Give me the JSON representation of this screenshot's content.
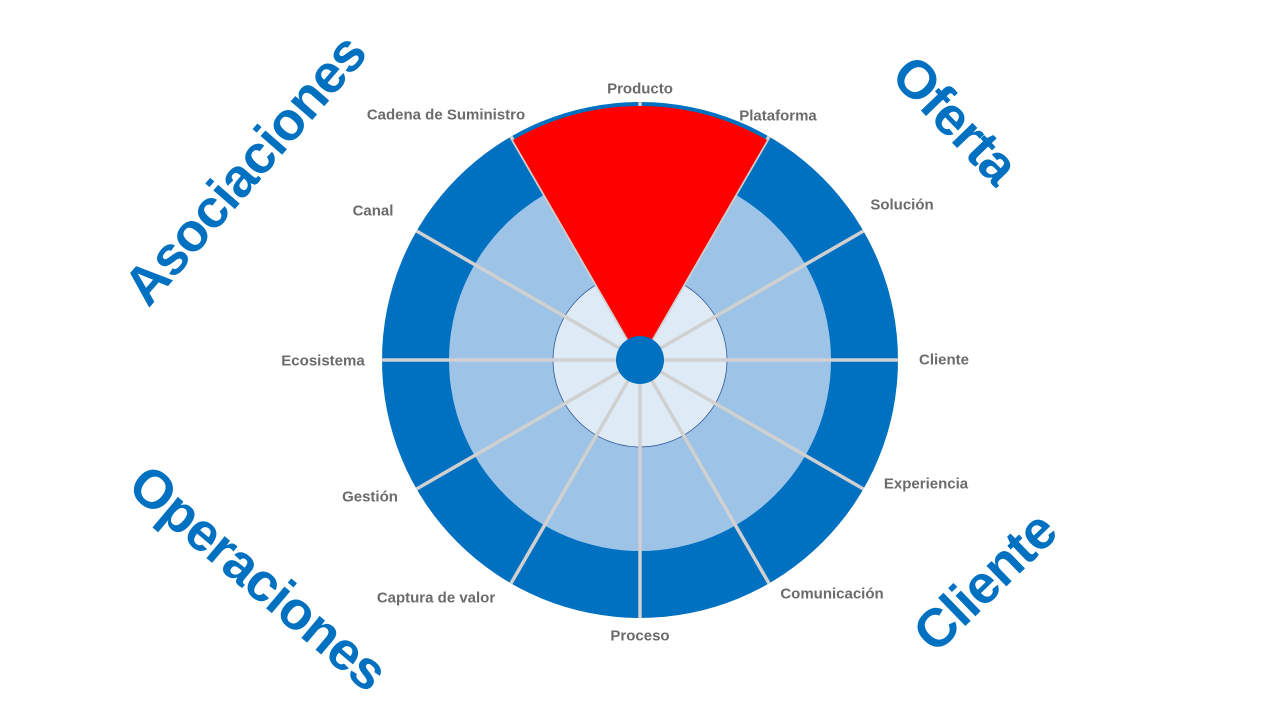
{
  "colors": {
    "outer_ring": "#0070C0",
    "middle_ring": "#9DC3E6",
    "inner_ring": "#DEEBF7",
    "spoke": "#D0D0D0",
    "highlight": "#FF0000",
    "label": "#6B6B6B",
    "quadrant": "#0070C0"
  },
  "highlighted_dimension": "Producto",
  "dimensions": [
    "Producto",
    "Plataforma",
    "Solución",
    "Cliente",
    "Experiencia",
    "Comunicación",
    "Proceso",
    "Captura de valor",
    "Gestión",
    "Ecosistema",
    "Canal",
    "Cadena de Suministro"
  ],
  "quadrants": {
    "top_left": "Asociaciones",
    "top_right": "Oferta",
    "bottom_left": "Operaciones",
    "bottom_right": "Cliente"
  }
}
